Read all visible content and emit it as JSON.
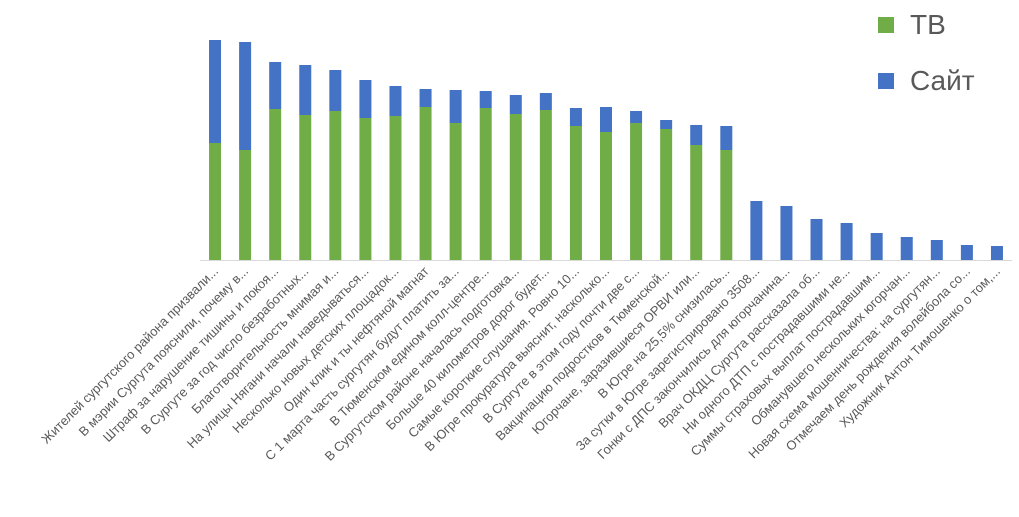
{
  "chart_data": {
    "type": "bar",
    "stacked": true,
    "categories": [
      "Жителей сургутского района призвали...",
      "В мэрии Сургута пояснили, почему в...",
      "Штраф за нарушение тишины и покоя...",
      "В Сургуте за год число безработных...",
      "Благотворительность мнимая и...",
      "На улицы Нягани начали наведываться...",
      "Несколько новых детских площадок...",
      "Один клик и ты нефтяной магнат",
      "С 1 марта часть сургутян будут платить за...",
      "В Тюменском едином колл-центре...",
      "В Сургутском районе началась подготовка...",
      "Больше 40 километров дорог будет...",
      "Самые короткие слушания. Ровно 10...",
      "В Югре прокуратура выяснит, насколько...",
      "В Сургуте в этом году почти две с...",
      "Вакцинацию подростков в Тюменской...",
      "Югорчане, заразившиеся ОРВИ или...",
      "В Югре на 25,5% снизилась...",
      "За сутки в Югре зарегистрировано 3508...",
      "Гонки с ДПС закончились для югорчанина...",
      "Врач ОКДЦ Сургута рассказала об...",
      "Ни одного ДТП с пострадавшими не...",
      "Суммы страховых выплат пострадавшим...",
      "Обманувшего нескольких югорчан...",
      "Новая схема мошенничества: на сургутян...",
      "Отмечаем день рождения волейбола со...",
      "Художник Антон Тимошенко о том,..."
    ],
    "series": [
      {
        "name": "ТВ",
        "color": "#70AD47",
        "values": [
          117,
          110,
          151,
          145,
          149,
          142,
          144,
          153,
          137,
          152,
          146,
          150,
          134,
          128,
          137,
          131,
          115,
          110,
          0,
          0,
          0,
          0,
          0,
          0,
          0,
          0,
          0
        ]
      },
      {
        "name": "Сайт",
        "color": "#4472C4",
        "values": [
          103,
          108,
          47,
          50,
          41,
          38,
          30,
          18,
          33,
          17,
          19,
          17,
          18,
          25,
          12,
          9,
          20,
          24,
          59,
          54,
          41,
          37,
          27,
          23,
          20,
          15,
          14
        ]
      }
    ],
    "ylim": [
      0,
      230
    ],
    "grid": false,
    "legend_position": "top-right",
    "title": "",
    "xlabel": "",
    "ylabel": ""
  }
}
